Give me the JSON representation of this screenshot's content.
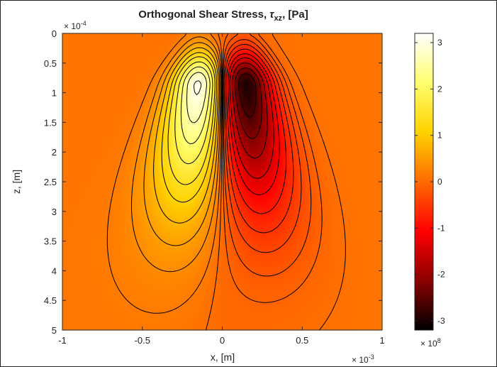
{
  "chart_data": {
    "type": "heatmap",
    "title": "Orthogonal Shear Stress, ",
    "title_symbol": "τ",
    "title_subscript": "xz",
    "title_unit": ", [Pa]",
    "xlabel": "x, [m]",
    "ylabel": "z, [m]",
    "xlim": [
      -1,
      1
    ],
    "ylim": [
      0,
      5
    ],
    "x_reversed": false,
    "y_reversed": true,
    "x_ticks": [
      "-1",
      "-0.5",
      "0",
      "0.5",
      "1"
    ],
    "x_tick_values": [
      -1,
      -0.5,
      0,
      0.5,
      1
    ],
    "y_ticks": [
      "0",
      "0.5",
      "1",
      "1.5",
      "2",
      "2.5",
      "3",
      "3.5",
      "4",
      "4.5",
      "5"
    ],
    "y_tick_values": [
      0,
      0.5,
      1,
      1.5,
      2,
      2.5,
      3,
      3.5,
      4,
      4.5,
      5
    ],
    "x_multiplier": "× 10",
    "x_multiplier_exp": "-3",
    "y_multiplier": "× 10",
    "y_multiplier_exp": "-4",
    "colorbar": {
      "range": [
        -3.2,
        3.2
      ],
      "ticks": [
        "3",
        "2",
        "1",
        "0",
        "-1",
        "-2",
        "-3"
      ],
      "tick_values": [
        3,
        2,
        1,
        0,
        -1,
        -2,
        -3
      ],
      "multiplier": "× 10",
      "multiplier_exp": "8",
      "colormap": "hot",
      "colors": [
        "#000000",
        "#8b0000",
        "#ff0000",
        "#ff6a00",
        "#ffd200",
        "#ffff6e",
        "#ffffff"
      ]
    },
    "field": {
      "description": "tau_xz contour field",
      "peak_positive": {
        "x": -0.14,
        "z": 0.9,
        "value": 3.2
      },
      "peak_negative": {
        "x": 0.14,
        "z": 0.9,
        "value": -3.2
      },
      "background_value": 0.2
    },
    "contour_levels": [
      -3.0,
      -2.6,
      -2.2,
      -1.8,
      -1.4,
      -1.1,
      -0.8,
      -0.55,
      -0.35,
      -0.18,
      -0.06,
      0.06,
      0.18,
      0.35,
      0.55,
      0.8,
      1.1,
      1.4,
      1.8,
      2.2,
      2.6,
      3.0
    ],
    "contour_color": "#000000"
  }
}
